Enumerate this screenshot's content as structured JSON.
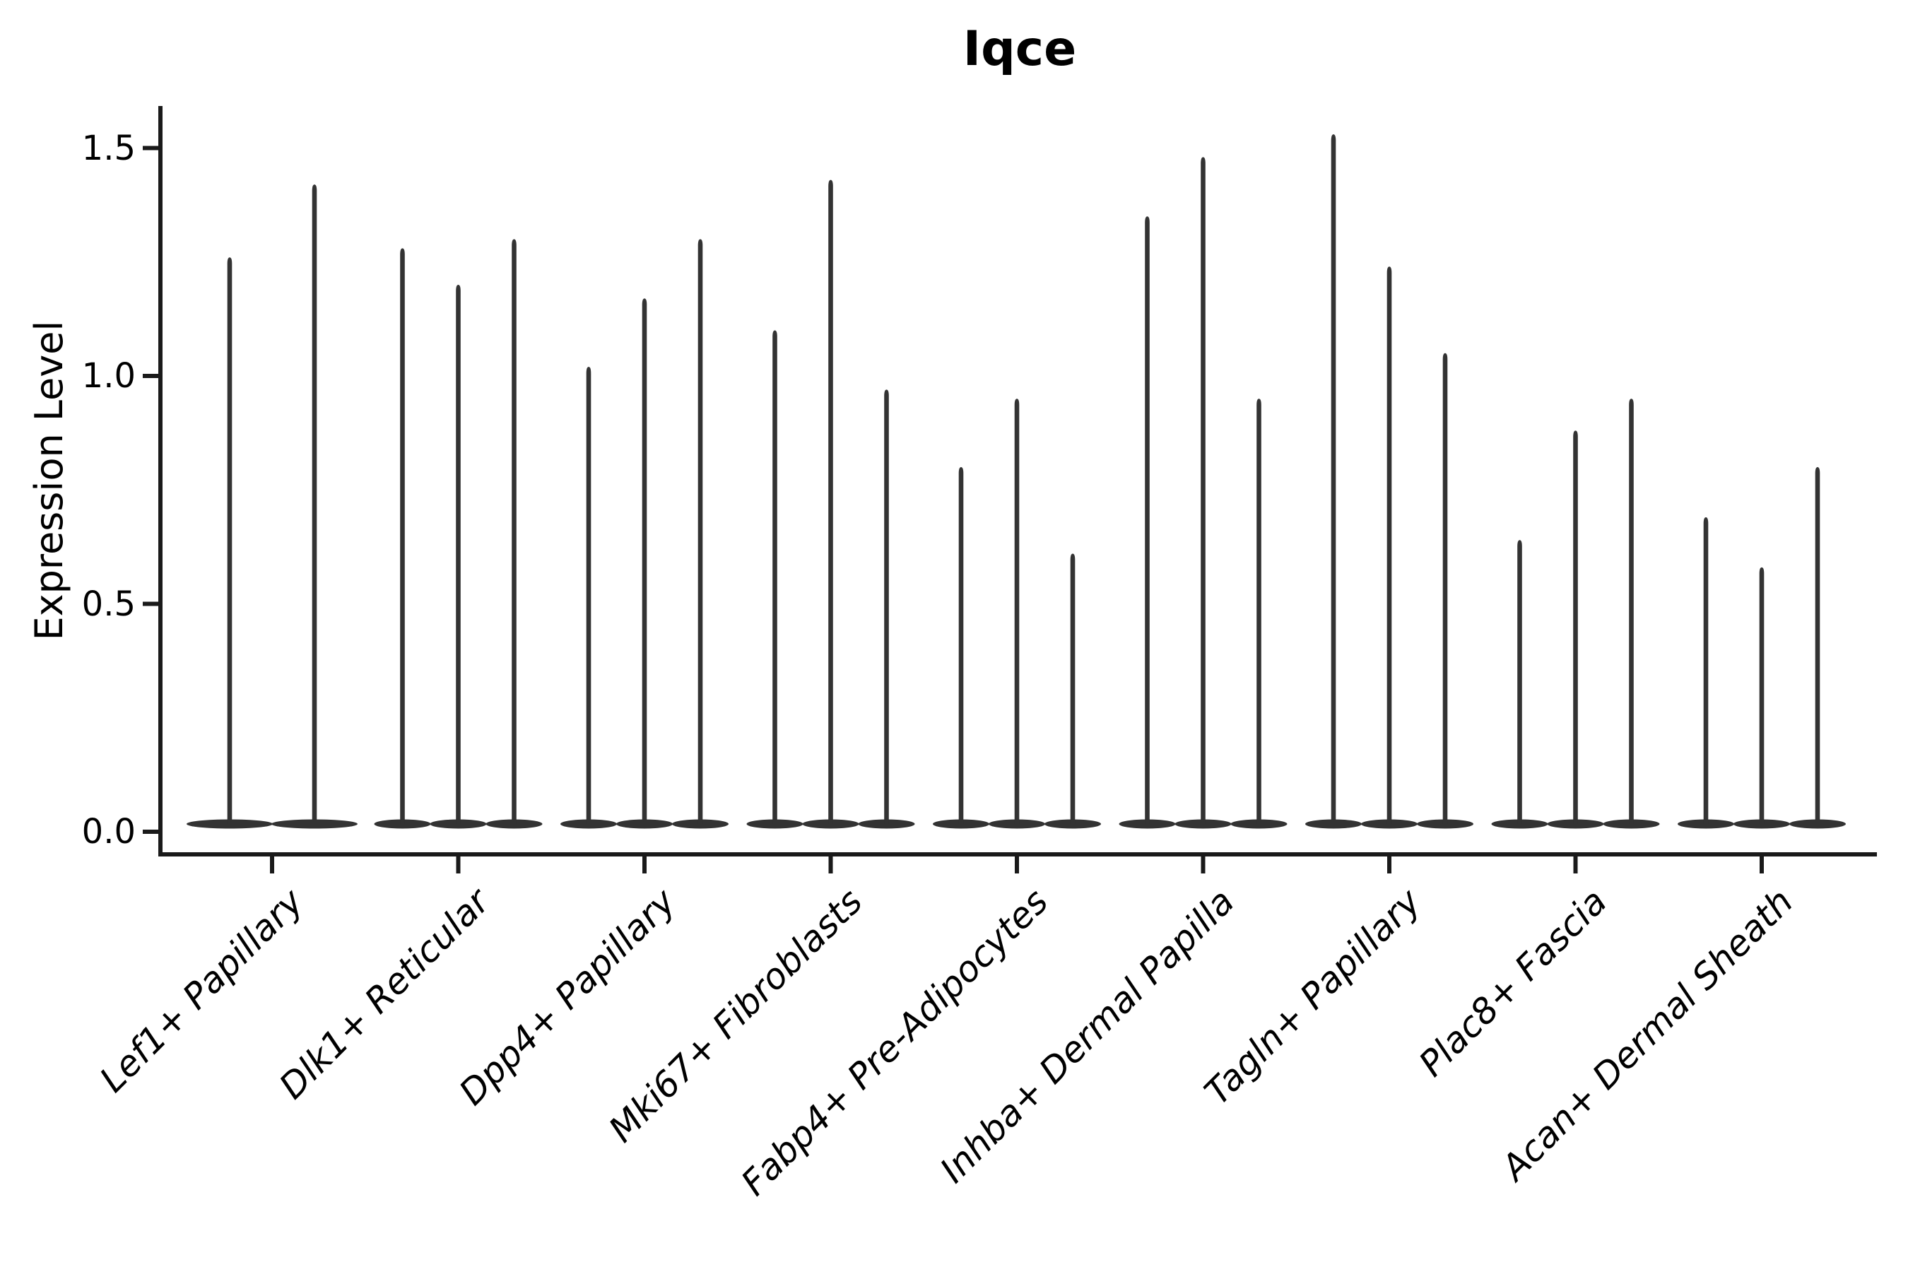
{
  "chart_data": {
    "type": "violin",
    "title": "Iqce",
    "xlabel": "",
    "ylabel": "Expression Level",
    "yticks": [
      0.0,
      0.5,
      1.0,
      1.5
    ],
    "ytick_labels": [
      "0.0",
      "0.5",
      "1.0",
      "1.5"
    ],
    "ylim": [
      -0.05,
      1.59
    ],
    "grid": false,
    "legend_position": "none",
    "categories": [
      "Lef1+ Papillary",
      "Dlk1+ Reticular",
      "Dpp4+ Papillary",
      "Mki67+ Fibroblasts",
      "Fabp4+ Pre-Adipocytes",
      "Inhba+ Dermal Papilla",
      "Tagln+ Papillary",
      "Plac8+ Fascia",
      "Acan+ Dermal Sheath"
    ],
    "groups": [
      {
        "label": "Lef1+ Papillary",
        "violin_max_values": [
          1.26,
          1.42
        ]
      },
      {
        "label": "Dlk1+ Reticular",
        "violin_max_values": [
          1.28,
          1.2,
          1.3
        ]
      },
      {
        "label": "Dpp4+ Papillary",
        "violin_max_values": [
          1.02,
          1.17,
          1.3
        ]
      },
      {
        "label": "Mki67+ Fibroblasts",
        "violin_max_values": [
          1.1,
          1.43,
          0.97
        ]
      },
      {
        "label": "Fabp4+ Pre-Adipocytes",
        "violin_max_values": [
          0.8,
          0.95,
          0.61
        ]
      },
      {
        "label": "Inhba+ Dermal Papilla",
        "violin_max_values": [
          1.35,
          1.48,
          0.95
        ]
      },
      {
        "label": "Tagln+ Papillary",
        "violin_max_values": [
          1.53,
          1.24,
          1.05
        ]
      },
      {
        "label": "Plac8+ Fascia",
        "violin_max_values": [
          0.64,
          0.88,
          0.95
        ]
      },
      {
        "label": "Acan+ Dermal Sheath",
        "violin_max_values": [
          0.69,
          0.58,
          0.8
        ]
      }
    ],
    "baseline_value": 0.0,
    "colors": {
      "violin_fill": "#333333",
      "axis": "#1a1a1a",
      "text": "#000000",
      "background": "#ffffff"
    }
  }
}
